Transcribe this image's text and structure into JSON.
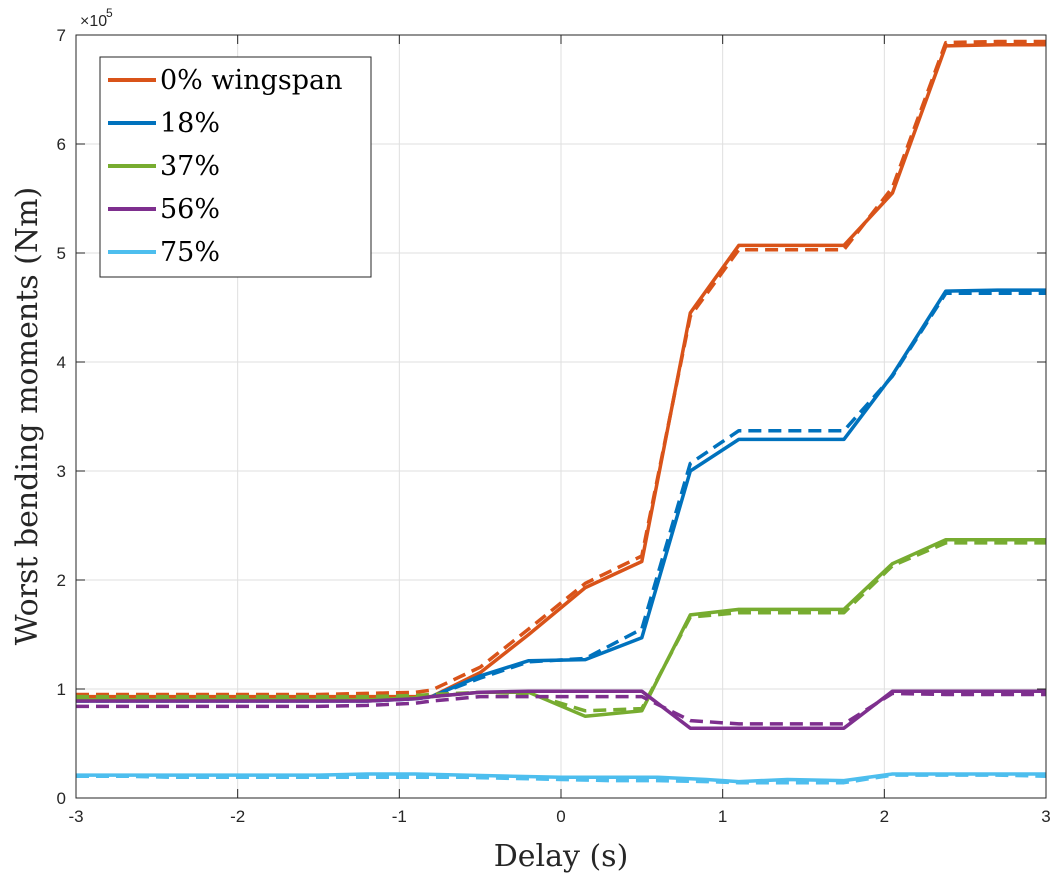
{
  "chart_data": {
    "type": "line",
    "xlabel": "Delay (s)",
    "ylabel": "Worst bending moments (Nm)",
    "y_exponent_base": "×10",
    "y_exponent_power": "5",
    "xlim": [
      -3,
      3
    ],
    "ylim": [
      0,
      7
    ],
    "x_ticks": [
      "-3",
      "-2",
      "-1",
      "0",
      "1",
      "2",
      "3"
    ],
    "y_ticks": [
      "0",
      "1",
      "2",
      "3",
      "4",
      "5",
      "6",
      "7"
    ],
    "grid": true,
    "legend_position": "top-left",
    "series": [
      {
        "name": "0% wingspan",
        "color": "#D95319",
        "x": [
          -3,
          -2.7,
          -2.4,
          -2.1,
          -1.8,
          -1.5,
          -1.2,
          -0.9,
          -0.8,
          -0.5,
          -0.2,
          0.15,
          0.5,
          0.8,
          1.1,
          1.4,
          1.75,
          2.05,
          2.38,
          2.7,
          3
        ],
        "solid": [
          0.93,
          0.93,
          0.93,
          0.93,
          0.93,
          0.93,
          0.93,
          0.93,
          0.93,
          1.15,
          1.5,
          1.93,
          2.17,
          4.45,
          5.07,
          5.07,
          5.07,
          5.55,
          6.9,
          6.91,
          6.91
        ],
        "dashed": [
          0.95,
          0.95,
          0.95,
          0.95,
          0.95,
          0.95,
          0.96,
          0.97,
          0.99,
          1.2,
          1.55,
          1.97,
          2.22,
          4.42,
          5.03,
          5.03,
          5.03,
          5.6,
          6.93,
          6.94,
          6.94
        ]
      },
      {
        "name": "18%",
        "color": "#0072BD",
        "x": [
          -3,
          -2.7,
          -2.4,
          -2.1,
          -1.8,
          -1.5,
          -1.2,
          -0.9,
          -0.8,
          -0.5,
          -0.2,
          0.15,
          0.5,
          0.8,
          1.1,
          1.4,
          1.75,
          2.05,
          2.38,
          2.7,
          3
        ],
        "solid": [
          0.89,
          0.89,
          0.89,
          0.89,
          0.89,
          0.89,
          0.89,
          0.91,
          0.93,
          1.12,
          1.26,
          1.27,
          1.47,
          3.0,
          3.29,
          3.29,
          3.29,
          3.88,
          4.65,
          4.66,
          4.66
        ],
        "dashed": [
          0.89,
          0.89,
          0.89,
          0.89,
          0.89,
          0.89,
          0.89,
          0.91,
          0.93,
          1.1,
          1.25,
          1.28,
          1.55,
          3.07,
          3.37,
          3.37,
          3.37,
          3.87,
          4.63,
          4.63,
          4.63
        ]
      },
      {
        "name": "37%",
        "color": "#77AC30",
        "x": [
          -3,
          -2.7,
          -2.4,
          -2.1,
          -1.8,
          -1.5,
          -1.2,
          -0.9,
          -0.8,
          -0.5,
          -0.2,
          0.15,
          0.5,
          0.8,
          1.1,
          1.4,
          1.75,
          2.05,
          2.38,
          2.7,
          3
        ],
        "solid": [
          0.9,
          0.9,
          0.9,
          0.9,
          0.9,
          0.9,
          0.9,
          0.92,
          0.93,
          0.97,
          0.97,
          0.75,
          0.8,
          1.68,
          1.73,
          1.73,
          1.73,
          2.15,
          2.37,
          2.37,
          2.37
        ],
        "dashed": [
          0.93,
          0.93,
          0.93,
          0.93,
          0.93,
          0.93,
          0.93,
          0.94,
          0.95,
          0.97,
          0.96,
          0.8,
          0.82,
          1.66,
          1.7,
          1.7,
          1.7,
          2.13,
          2.34,
          2.34,
          2.34
        ]
      },
      {
        "name": "56%",
        "color": "#7E2F8E",
        "x": [
          -3,
          -2.7,
          -2.4,
          -2.1,
          -1.8,
          -1.5,
          -1.2,
          -0.9,
          -0.8,
          -0.5,
          -0.2,
          0.15,
          0.5,
          0.8,
          1.1,
          1.4,
          1.75,
          2.05,
          2.38,
          2.7,
          3
        ],
        "solid": [
          0.89,
          0.89,
          0.89,
          0.89,
          0.89,
          0.89,
          0.89,
          0.91,
          0.93,
          0.97,
          0.98,
          0.98,
          0.98,
          0.64,
          0.64,
          0.64,
          0.64,
          0.98,
          0.98,
          0.98,
          0.98
        ],
        "dashed": [
          0.84,
          0.84,
          0.84,
          0.84,
          0.84,
          0.84,
          0.85,
          0.87,
          0.89,
          0.93,
          0.93,
          0.93,
          0.93,
          0.71,
          0.68,
          0.68,
          0.68,
          0.96,
          0.95,
          0.95,
          0.95
        ]
      },
      {
        "name": "75%",
        "color": "#4DBEEE",
        "x": [
          -3,
          -2.7,
          -2.4,
          -2.1,
          -1.8,
          -1.5,
          -1.2,
          -0.9,
          -0.6,
          -0.3,
          0,
          0.3,
          0.6,
          0.9,
          1.1,
          1.4,
          1.75,
          2.05,
          2.38,
          2.7,
          3
        ],
        "solid": [
          0.21,
          0.21,
          0.21,
          0.21,
          0.21,
          0.21,
          0.22,
          0.22,
          0.21,
          0.2,
          0.19,
          0.19,
          0.19,
          0.17,
          0.15,
          0.17,
          0.16,
          0.22,
          0.22,
          0.22,
          0.22
        ],
        "dashed": [
          0.2,
          0.2,
          0.19,
          0.19,
          0.19,
          0.19,
          0.19,
          0.19,
          0.19,
          0.18,
          0.17,
          0.16,
          0.16,
          0.15,
          0.14,
          0.14,
          0.14,
          0.21,
          0.21,
          0.21,
          0.2
        ]
      }
    ]
  }
}
